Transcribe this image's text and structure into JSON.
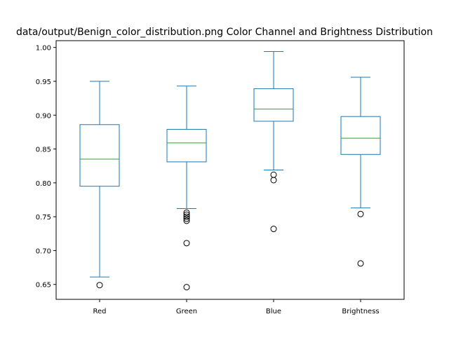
{
  "chart_data": {
    "type": "box",
    "title": "data/output/Benign_color_distribution.png Color Channel and Brightness Distribution",
    "xlabel": "",
    "ylabel": "",
    "ylim": [
      0.628,
      1.01
    ],
    "yticks": [
      0.65,
      0.7,
      0.75,
      0.8,
      0.85,
      0.9,
      0.95,
      1.0
    ],
    "ytick_labels": [
      "0.65",
      "0.70",
      "0.75",
      "0.80",
      "0.85",
      "0.90",
      "0.95",
      "1.00"
    ],
    "categories": [
      "Red",
      "Green",
      "Blue",
      "Brightness"
    ],
    "series": [
      {
        "whisker_low": 0.661,
        "q1": 0.795,
        "median": 0.835,
        "q3": 0.886,
        "whisker_high": 0.95,
        "outliers": [
          0.649
        ]
      },
      {
        "whisker_low": 0.762,
        "q1": 0.831,
        "median": 0.859,
        "q3": 0.879,
        "whisker_high": 0.943,
        "outliers": [
          0.756,
          0.753,
          0.75,
          0.747,
          0.744,
          0.711,
          0.646
        ]
      },
      {
        "whisker_low": 0.819,
        "q1": 0.891,
        "median": 0.909,
        "q3": 0.939,
        "whisker_high": 0.994,
        "outliers": [
          0.812,
          0.804,
          0.732
        ]
      },
      {
        "whisker_low": 0.763,
        "q1": 0.842,
        "median": 0.866,
        "q3": 0.898,
        "whisker_high": 0.956,
        "outliers": [
          0.754,
          0.681
        ]
      }
    ],
    "colors": {
      "box": "#1f77b4",
      "median": "#2ca02c",
      "outlier": "#000000"
    },
    "grid": false,
    "legend": "none"
  }
}
